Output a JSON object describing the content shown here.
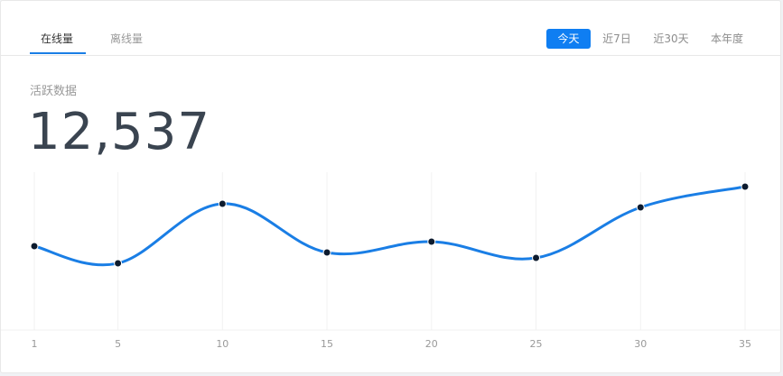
{
  "tabs": [
    {
      "label": "在线量",
      "active": true
    },
    {
      "label": "离线量",
      "active": false
    }
  ],
  "ranges": [
    {
      "label": "今天",
      "active": true
    },
    {
      "label": "近7日",
      "active": false
    },
    {
      "label": "近30天",
      "active": false
    },
    {
      "label": "本年度",
      "active": false
    }
  ],
  "metric": {
    "label": "活跃数据",
    "value": "12,537"
  },
  "colors": {
    "accent": "#0f7ef2",
    "line": "#1a7ee5",
    "point": "#0d1b2e"
  },
  "chart_data": {
    "type": "line",
    "title": "",
    "xlabel": "",
    "ylabel": "",
    "x_ticks": [
      1,
      5,
      10,
      15,
      20,
      25,
      30,
      35
    ],
    "series": [
      {
        "x": [
          1,
          5,
          10,
          15,
          20,
          25,
          30,
          35
        ],
        "values": [
          93,
          74,
          140,
          86,
          98,
          80,
          136,
          159
        ]
      }
    ],
    "ylim": [
      0,
      175
    ],
    "grid": "vertical",
    "smooth": true,
    "legend": "none"
  }
}
